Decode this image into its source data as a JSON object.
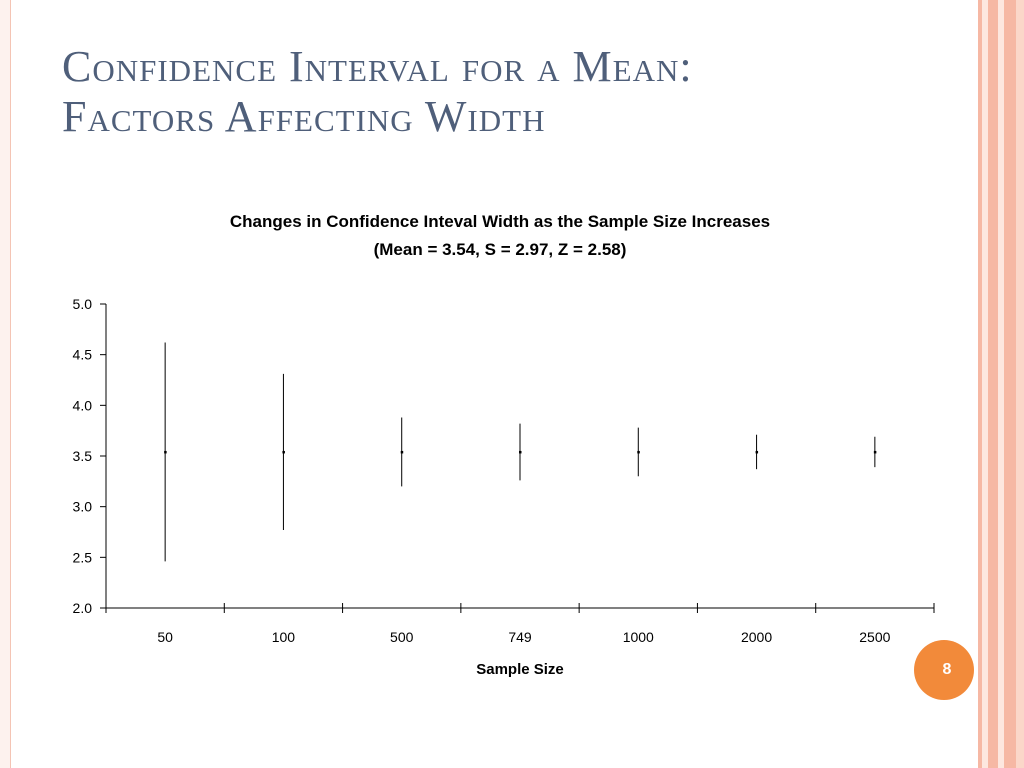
{
  "slide": {
    "title_line1": "Confidence Interval for a Mean:",
    "title_line2": "Factors Affecting Width",
    "page_number": "8"
  },
  "colors": {
    "title": "#4f5f7a",
    "stripe_pink": "#f6b8a4",
    "badge": "#f28a3a"
  },
  "chart_data": {
    "type": "scatter",
    "title": "Changes in Confidence Inteval Width as the Sample Size Increases",
    "subtitle": "(Mean = 3.54, S = 2.97, Z = 2.58)",
    "xlabel": "Sample Size",
    "ylabel": "",
    "categories": [
      "50",
      "100",
      "500",
      "749",
      "1000",
      "2000",
      "2500"
    ],
    "mean": [
      3.54,
      3.54,
      3.54,
      3.54,
      3.54,
      3.54,
      3.54
    ],
    "lower": [
      2.46,
      2.77,
      3.2,
      3.26,
      3.3,
      3.37,
      3.39
    ],
    "upper": [
      4.62,
      4.31,
      3.88,
      3.82,
      3.78,
      3.71,
      3.69
    ],
    "ylim": [
      2.0,
      5.0
    ],
    "yticks": [
      "2.0",
      "2.5",
      "3.0",
      "3.5",
      "4.0",
      "4.5",
      "5.0"
    ],
    "grid": false,
    "legend": "none"
  }
}
